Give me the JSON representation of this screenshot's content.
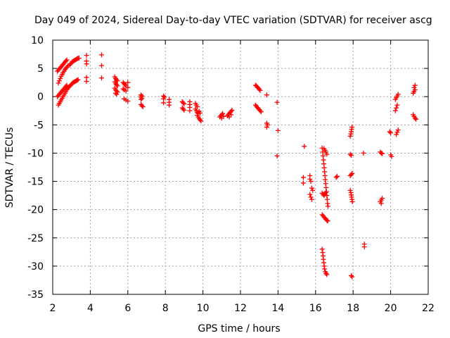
{
  "chart_data": {
    "type": "scatter",
    "title": "Day 049 of 2024, Sidereal Day-to-day VTEC variation (SDTVAR) for receiver ascg",
    "xlabel": "GPS time / hours",
    "ylabel": "SDTVAR / TECUs",
    "xlim": [
      2,
      22
    ],
    "ylim": [
      -35,
      10
    ],
    "xticks": [
      2,
      4,
      6,
      8,
      10,
      12,
      14,
      16,
      18,
      20,
      22
    ],
    "yticks": [
      10,
      5,
      0,
      -5,
      -10,
      -15,
      -20,
      -25,
      -30,
      -35
    ],
    "grid": true,
    "marker": "plus",
    "color": "#ff0000",
    "series": [
      {
        "name": "SDTVAR",
        "points": [
          [
            2.3,
            -1.5
          ],
          [
            2.35,
            -1.2
          ],
          [
            2.4,
            -0.9
          ],
          [
            2.45,
            -0.6
          ],
          [
            2.5,
            -0.3
          ],
          [
            2.55,
            0.0
          ],
          [
            2.6,
            0.3
          ],
          [
            2.65,
            0.6
          ],
          [
            2.7,
            0.9
          ],
          [
            2.75,
            1.2
          ],
          [
            2.8,
            1.5
          ],
          [
            2.85,
            1.7
          ],
          [
            2.25,
            0.0
          ],
          [
            2.3,
            0.2
          ],
          [
            2.35,
            0.4
          ],
          [
            2.4,
            0.6
          ],
          [
            2.45,
            0.8
          ],
          [
            2.5,
            1.0
          ],
          [
            2.55,
            1.2
          ],
          [
            2.6,
            1.4
          ],
          [
            2.65,
            1.6
          ],
          [
            2.7,
            1.8
          ],
          [
            2.75,
            2.0
          ],
          [
            2.3,
            2.4
          ],
          [
            2.35,
            2.8
          ],
          [
            2.4,
            3.2
          ],
          [
            2.45,
            3.6
          ],
          [
            2.5,
            3.9
          ],
          [
            2.55,
            4.2
          ],
          [
            2.6,
            4.5
          ],
          [
            2.65,
            4.8
          ],
          [
            2.7,
            5.0
          ],
          [
            2.75,
            5.2
          ],
          [
            2.8,
            5.4
          ],
          [
            2.25,
            4.5
          ],
          [
            2.3,
            4.7
          ],
          [
            2.35,
            4.9
          ],
          [
            2.4,
            5.1
          ],
          [
            2.45,
            5.3
          ],
          [
            2.5,
            5.5
          ],
          [
            2.55,
            5.7
          ],
          [
            2.6,
            5.9
          ],
          [
            2.65,
            6.1
          ],
          [
            2.7,
            6.3
          ],
          [
            2.75,
            6.5
          ],
          [
            2.9,
            1.8
          ],
          [
            2.95,
            2.0
          ],
          [
            3.0,
            2.2
          ],
          [
            3.05,
            2.4
          ],
          [
            3.1,
            2.5
          ],
          [
            3.15,
            2.6
          ],
          [
            3.2,
            2.7
          ],
          [
            3.25,
            2.8
          ],
          [
            3.3,
            2.9
          ],
          [
            3.35,
            3.0
          ],
          [
            2.9,
            5.6
          ],
          [
            2.95,
            5.8
          ],
          [
            3.0,
            6.0
          ],
          [
            3.05,
            6.2
          ],
          [
            3.1,
            6.3
          ],
          [
            3.15,
            6.4
          ],
          [
            3.2,
            6.5
          ],
          [
            3.25,
            6.6
          ],
          [
            3.3,
            6.7
          ],
          [
            3.35,
            6.8
          ],
          [
            3.4,
            6.8
          ],
          [
            3.8,
            7.3
          ],
          [
            3.8,
            6.3
          ],
          [
            3.8,
            5.8
          ],
          [
            3.8,
            3.4
          ],
          [
            3.8,
            2.7
          ],
          [
            4.6,
            7.4
          ],
          [
            4.6,
            5.5
          ],
          [
            4.6,
            3.3
          ],
          [
            5.3,
            3.5
          ],
          [
            5.35,
            3.2
          ],
          [
            5.4,
            3.0
          ],
          [
            5.45,
            2.8
          ],
          [
            5.3,
            2.6
          ],
          [
            5.35,
            2.3
          ],
          [
            5.4,
            2.1
          ],
          [
            5.45,
            1.9
          ],
          [
            5.3,
            1.5
          ],
          [
            5.35,
            1.2
          ],
          [
            5.4,
            1.0
          ],
          [
            5.45,
            0.8
          ],
          [
            5.35,
            0.6
          ],
          [
            5.4,
            0.4
          ],
          [
            5.75,
            2.5
          ],
          [
            5.8,
            2.3
          ],
          [
            5.85,
            2.1
          ],
          [
            5.9,
            1.9
          ],
          [
            6.0,
            2.5
          ],
          [
            6.0,
            1.6
          ],
          [
            5.75,
            1.4
          ],
          [
            5.8,
            1.2
          ],
          [
            5.9,
            1.0
          ],
          [
            5.8,
            -0.4
          ],
          [
            5.9,
            -0.6
          ],
          [
            6.0,
            -0.8
          ],
          [
            6.7,
            0.3
          ],
          [
            6.75,
            0.1
          ],
          [
            6.7,
            -0.1
          ],
          [
            6.75,
            -0.3
          ],
          [
            6.7,
            -0.5
          ],
          [
            6.7,
            -1.4
          ],
          [
            6.75,
            -1.6
          ],
          [
            6.8,
            -1.8
          ],
          [
            7.9,
            0.1
          ],
          [
            7.95,
            -0.1
          ],
          [
            7.9,
            -0.4
          ],
          [
            7.9,
            -1.1
          ],
          [
            8.2,
            -0.5
          ],
          [
            8.2,
            -1.0
          ],
          [
            8.2,
            -1.5
          ],
          [
            8.9,
            -0.9
          ],
          [
            8.95,
            -1.1
          ],
          [
            9.0,
            -1.3
          ],
          [
            8.9,
            -2.0
          ],
          [
            8.95,
            -2.2
          ],
          [
            9.0,
            -2.4
          ],
          [
            9.3,
            -0.9
          ],
          [
            9.3,
            -1.4
          ],
          [
            9.3,
            -1.9
          ],
          [
            9.3,
            -2.5
          ],
          [
            9.6,
            -1.2
          ],
          [
            9.65,
            -1.5
          ],
          [
            9.7,
            -1.8
          ],
          [
            9.6,
            -2.2
          ],
          [
            9.65,
            -2.5
          ],
          [
            9.7,
            -2.8
          ],
          [
            9.75,
            -3.0
          ],
          [
            9.7,
            -3.3
          ],
          [
            9.75,
            -3.6
          ],
          [
            9.8,
            -3.9
          ],
          [
            9.85,
            -4.1
          ],
          [
            9.9,
            -4.3
          ],
          [
            9.8,
            -2.6
          ],
          [
            9.85,
            -2.9
          ],
          [
            10.9,
            -3.6
          ],
          [
            10.95,
            -3.4
          ],
          [
            11.0,
            -3.2
          ],
          [
            11.05,
            -3.0
          ],
          [
            11.0,
            -3.8
          ],
          [
            11.1,
            -3.5
          ],
          [
            11.3,
            -3.4
          ],
          [
            11.35,
            -3.2
          ],
          [
            11.4,
            -3.0
          ],
          [
            11.45,
            -2.8
          ],
          [
            11.5,
            -2.6
          ],
          [
            11.55,
            -2.4
          ],
          [
            11.4,
            -3.6
          ],
          [
            11.5,
            -3.2
          ],
          [
            12.8,
            2.0
          ],
          [
            12.85,
            1.9
          ],
          [
            12.9,
            1.7
          ],
          [
            12.95,
            1.5
          ],
          [
            13.0,
            1.3
          ],
          [
            13.05,
            1.1
          ],
          [
            12.8,
            -1.5
          ],
          [
            12.85,
            -1.7
          ],
          [
            12.9,
            -1.9
          ],
          [
            12.95,
            -2.1
          ],
          [
            13.0,
            -2.3
          ],
          [
            13.05,
            -2.5
          ],
          [
            13.1,
            -2.7
          ],
          [
            13.4,
            0.3
          ],
          [
            13.4,
            -4.7
          ],
          [
            13.45,
            -5.0
          ],
          [
            13.4,
            -5.4
          ],
          [
            13.95,
            -1.0
          ],
          [
            14.0,
            -6.0
          ],
          [
            13.95,
            -10.5
          ],
          [
            15.4,
            -8.8
          ],
          [
            15.35,
            -14.3
          ],
          [
            15.35,
            -15.3
          ],
          [
            15.7,
            -14.0
          ],
          [
            15.7,
            -14.6
          ],
          [
            15.75,
            -15.0
          ],
          [
            15.8,
            -16.2
          ],
          [
            15.85,
            -16.6
          ],
          [
            15.7,
            -17.3
          ],
          [
            15.75,
            -17.8
          ],
          [
            15.8,
            -18.2
          ],
          [
            16.35,
            -9.1
          ],
          [
            16.38,
            -9.8
          ],
          [
            16.4,
            -10.5
          ],
          [
            16.42,
            -11.2
          ],
          [
            16.44,
            -11.9
          ],
          [
            16.46,
            -12.6
          ],
          [
            16.48,
            -13.3
          ],
          [
            16.5,
            -14.0
          ],
          [
            16.52,
            -14.7
          ],
          [
            16.54,
            -15.4
          ],
          [
            16.56,
            -16.1
          ],
          [
            16.58,
            -16.8
          ],
          [
            16.6,
            -17.5
          ],
          [
            16.62,
            -18.2
          ],
          [
            16.64,
            -18.9
          ],
          [
            16.66,
            -19.4
          ],
          [
            16.45,
            -9.2
          ],
          [
            16.5,
            -9.5
          ],
          [
            16.55,
            -9.8
          ],
          [
            16.6,
            -10.2
          ],
          [
            16.35,
            -17.1
          ],
          [
            16.4,
            -17.3
          ],
          [
            16.45,
            -17.5
          ],
          [
            16.5,
            -17.3
          ],
          [
            16.55,
            -17.0
          ],
          [
            16.35,
            -20.9
          ],
          [
            16.4,
            -21.1
          ],
          [
            16.45,
            -21.3
          ],
          [
            16.5,
            -21.5
          ],
          [
            16.55,
            -21.7
          ],
          [
            16.6,
            -21.9
          ],
          [
            16.65,
            -22.0
          ],
          [
            16.35,
            -27.0
          ],
          [
            16.38,
            -27.6
          ],
          [
            16.4,
            -28.2
          ],
          [
            16.42,
            -28.8
          ],
          [
            16.44,
            -29.4
          ],
          [
            16.46,
            -30.0
          ],
          [
            16.48,
            -30.5
          ],
          [
            16.52,
            -31.0
          ],
          [
            16.56,
            -31.3
          ],
          [
            16.6,
            -31.5
          ],
          [
            17.1,
            -14.3
          ],
          [
            17.15,
            -14.1
          ],
          [
            17.85,
            -7.0
          ],
          [
            17.88,
            -6.6
          ],
          [
            17.9,
            -6.2
          ],
          [
            17.92,
            -5.8
          ],
          [
            17.94,
            -5.4
          ],
          [
            17.85,
            -10.2
          ],
          [
            17.9,
            -10.4
          ],
          [
            17.85,
            -14.0
          ],
          [
            17.9,
            -13.8
          ],
          [
            17.95,
            -13.6
          ],
          [
            17.85,
            -16.6
          ],
          [
            17.88,
            -17.0
          ],
          [
            17.9,
            -17.4
          ],
          [
            17.92,
            -17.8
          ],
          [
            17.94,
            -18.2
          ],
          [
            17.96,
            -18.6
          ],
          [
            17.9,
            -31.7
          ],
          [
            17.95,
            -31.9
          ],
          [
            18.55,
            -10.0
          ],
          [
            18.6,
            -26.1
          ],
          [
            18.6,
            -26.6
          ],
          [
            19.45,
            -9.8
          ],
          [
            19.5,
            -10.0
          ],
          [
            19.55,
            -10.1
          ],
          [
            19.45,
            -18.6
          ],
          [
            19.5,
            -18.3
          ],
          [
            19.55,
            -18.0
          ],
          [
            19.5,
            -18.9
          ],
          [
            19.95,
            -6.2
          ],
          [
            20.0,
            -6.4
          ],
          [
            20.0,
            -10.3
          ],
          [
            20.05,
            -10.6
          ],
          [
            20.25,
            -2.5
          ],
          [
            20.3,
            -2.0
          ],
          [
            20.35,
            -1.5
          ],
          [
            20.25,
            -0.5
          ],
          [
            20.3,
            -0.2
          ],
          [
            20.35,
            0.1
          ],
          [
            20.4,
            0.4
          ],
          [
            20.3,
            -6.7
          ],
          [
            20.35,
            -6.3
          ],
          [
            20.4,
            -5.9
          ],
          [
            21.2,
            0.6
          ],
          [
            21.25,
            0.9
          ],
          [
            21.3,
            1.2
          ],
          [
            21.25,
            1.6
          ],
          [
            21.3,
            2.0
          ],
          [
            21.2,
            -3.2
          ],
          [
            21.25,
            -3.5
          ],
          [
            21.3,
            -3.8
          ],
          [
            21.35,
            -4.0
          ]
        ]
      }
    ]
  }
}
